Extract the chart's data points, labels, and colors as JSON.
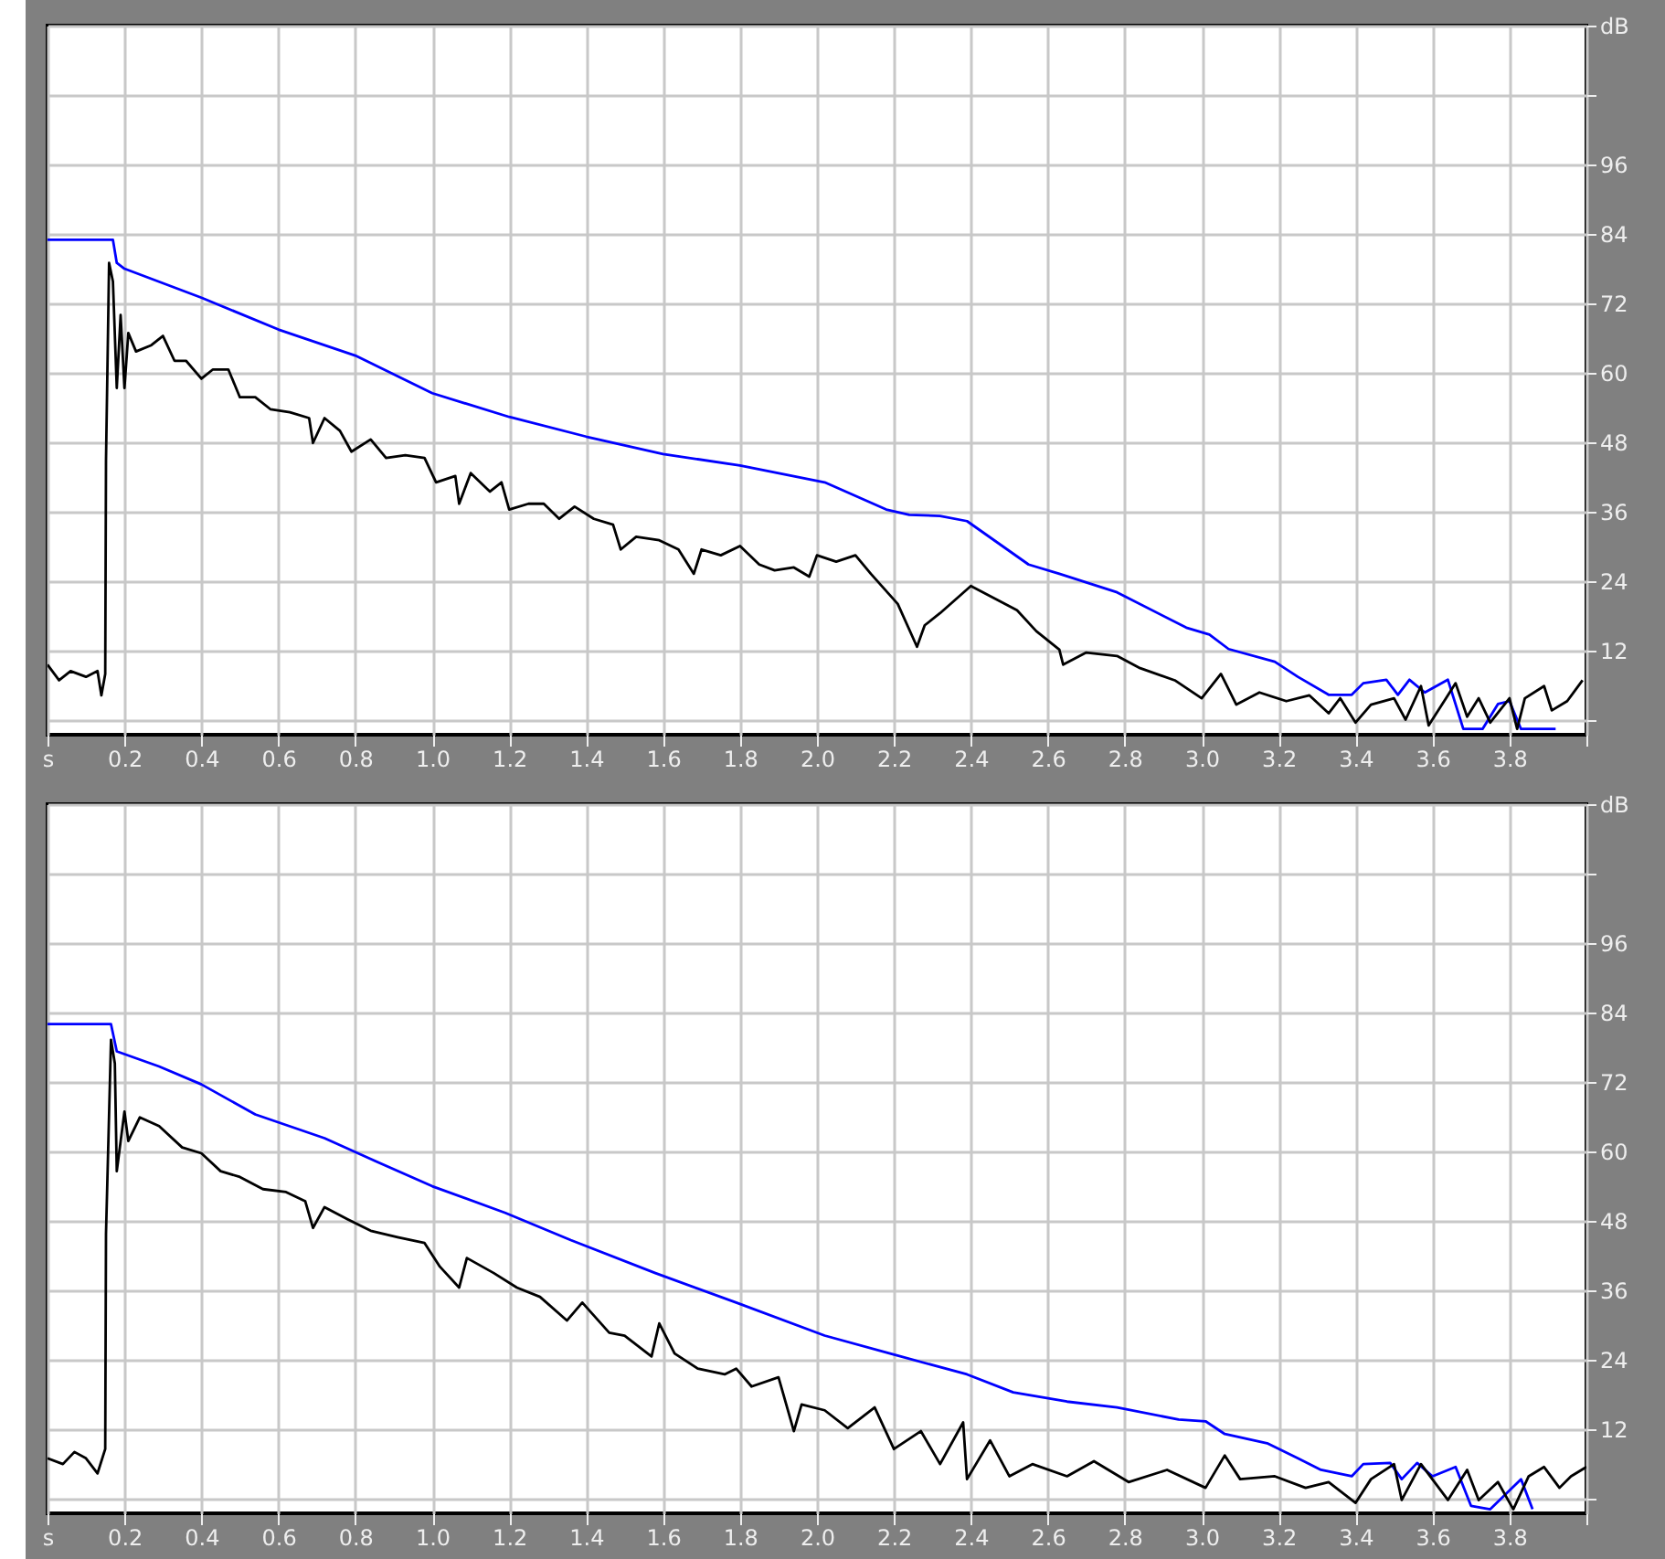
{
  "chart_data": [
    {
      "type": "line",
      "xlim": [
        0,
        4
      ],
      "ylim": [
        -2.5,
        120
      ],
      "grid": true,
      "xticks": [
        {
          "value": 0,
          "label": "s"
        },
        0.2,
        0.4,
        0.6,
        0.8,
        {
          "value": 1,
          "label": "1.0"
        },
        1.2,
        1.4,
        1.6,
        1.8,
        {
          "value": 2,
          "label": "2.0"
        },
        2.2,
        2.4,
        2.6,
        2.8,
        {
          "value": 3,
          "label": "3.0"
        },
        3.2,
        3.4,
        3.6,
        3.8,
        {
          "value": 4,
          "label": null
        }
      ],
      "yticks": [
        {
          "value": 0,
          "label": null
        },
        12,
        24,
        36,
        48,
        60,
        72,
        84,
        96,
        {
          "value": 108,
          "label": null
        },
        {
          "value": 120,
          "label": "dB"
        }
      ],
      "series": [
        {
          "color": "#0000ff",
          "x": [
            0,
            0.17,
            0.18,
            0.2,
            0.4,
            0.6,
            0.8,
            1.0,
            1.2,
            1.4,
            1.6,
            1.8,
            2.02,
            2.18,
            2.24,
            2.32,
            2.39,
            2.55,
            2.63,
            2.78,
            2.96,
            3.02,
            3.07,
            3.19,
            3.25,
            3.33,
            3.39,
            3.42,
            3.48,
            3.51,
            3.54,
            3.58,
            3.64,
            3.68,
            3.73,
            3.77,
            3.8,
            3.83,
            3.92
          ],
          "values": [
            83,
            83,
            79,
            78,
            73,
            67.5,
            63,
            56.5,
            52.4,
            49,
            46,
            44,
            41.1,
            36.4,
            35.5,
            35.3,
            34.4,
            26.9,
            25.3,
            22.1,
            16,
            14.8,
            12.3,
            10.1,
            7.5,
            4.4,
            4.4,
            6.4,
            7,
            4.4,
            7,
            4.8,
            7,
            -1.5,
            -1.5,
            2.8,
            3.3,
            -1.5,
            -1.5
          ]
        },
        {
          "color": "#000000",
          "x": [
            0,
            0.03,
            0.06,
            0.1,
            0.13,
            0.14,
            0.15,
            0.152,
            0.16,
            0.17,
            0.18,
            0.19,
            0.2,
            0.21,
            0.23,
            0.27,
            0.3,
            0.33,
            0.36,
            0.4,
            0.43,
            0.47,
            0.5,
            0.54,
            0.58,
            0.63,
            0.68,
            0.69,
            0.72,
            0.76,
            0.79,
            0.84,
            0.88,
            0.93,
            0.98,
            1.01,
            1.06,
            1.07,
            1.1,
            1.15,
            1.18,
            1.2,
            1.25,
            1.29,
            1.33,
            1.37,
            1.42,
            1.47,
            1.49,
            1.53,
            1.59,
            1.64,
            1.68,
            1.7,
            1.75,
            1.8,
            1.85,
            1.89,
            1.94,
            1.98,
            2.0,
            2.05,
            2.1,
            2.14,
            2.21,
            2.26,
            2.28,
            2.32,
            2.4,
            2.46,
            2.52,
            2.57,
            2.63,
            2.64,
            2.7,
            2.78,
            2.84,
            2.93,
            3.0,
            3.05,
            3.09,
            3.15,
            3.22,
            3.28,
            3.33,
            3.36,
            3.4,
            3.44,
            3.5,
            3.53,
            3.57,
            3.59,
            3.66,
            3.69,
            3.72,
            3.75,
            3.8,
            3.82,
            3.84,
            3.89,
            3.91,
            3.95,
            3.99
          ],
          "values": [
            9.6,
            6.9,
            8.5,
            7.5,
            8.5,
            4.3,
            8,
            44.8,
            79,
            75.8,
            57.4,
            70,
            57.4,
            66.9,
            63.7,
            64.8,
            66.4,
            62.1,
            62.1,
            59,
            60.6,
            60.6,
            55.8,
            55.8,
            53.7,
            53.2,
            52.2,
            47.9,
            52.2,
            50,
            46.4,
            48.5,
            45.3,
            45.8,
            45.3,
            41.1,
            42.2,
            37.4,
            42.7,
            39.5,
            41.1,
            36.4,
            37.4,
            37.4,
            34.8,
            36.9,
            34.8,
            33.8,
            29.5,
            31.7,
            31.1,
            29.5,
            25.3,
            29.5,
            28.5,
            30.1,
            26.9,
            25.9,
            26.4,
            24.8,
            28.5,
            27.4,
            28.5,
            25.3,
            20.1,
            12.7,
            16.4,
            18.5,
            23.2,
            21.1,
            19,
            15.4,
            12.2,
            9.6,
            11.7,
            11.1,
            9,
            6.9,
            3.8,
            8,
            2.7,
            4.8,
            3.3,
            4.3,
            1.2,
            3.8,
            -0.4,
            2.7,
            3.8,
            0.1,
            5.9,
            -0.9,
            6.4,
            0.6,
            3.8,
            -0.4,
            3.8,
            -1.5,
            3.8,
            5.9,
            1.7,
            3.3,
            6.9
          ]
        }
      ]
    },
    {
      "type": "line",
      "xlim": [
        0,
        4
      ],
      "ylim": [
        -2.5,
        120
      ],
      "grid": true,
      "xticks": [
        {
          "value": 0,
          "label": "s"
        },
        0.2,
        0.4,
        0.6,
        0.8,
        {
          "value": 1,
          "label": "1.0"
        },
        1.2,
        1.4,
        1.6,
        1.8,
        {
          "value": 2,
          "label": "2.0"
        },
        2.2,
        2.4,
        2.6,
        2.8,
        {
          "value": 3,
          "label": "3.0"
        },
        3.2,
        3.4,
        3.6,
        3.8,
        {
          "value": 4,
          "label": null
        }
      ],
      "yticks": [
        {
          "value": 0,
          "label": null
        },
        12,
        24,
        36,
        48,
        60,
        72,
        84,
        96,
        {
          "value": 108,
          "label": null
        },
        {
          "value": 120,
          "label": "dB"
        }
      ],
      "series": [
        {
          "color": "#0000ff",
          "x": [
            0,
            0.165,
            0.18,
            0.29,
            0.4,
            0.54,
            0.72,
            0.84,
            1.0,
            1.19,
            1.36,
            1.58,
            1.79,
            2.02,
            2.19,
            2.39,
            2.51,
            2.65,
            2.78,
            2.94,
            3.01,
            3.06,
            3.17,
            3.25,
            3.31,
            3.39,
            3.42,
            3.49,
            3.52,
            3.56,
            3.6,
            3.66,
            3.7,
            3.75,
            3.83,
            3.86
          ],
          "values": [
            82,
            82,
            77.3,
            74.7,
            71.6,
            66.4,
            62.3,
            58.7,
            54,
            49.4,
            44.7,
            39,
            33.9,
            28.2,
            25.1,
            21.5,
            18.4,
            16.8,
            15.8,
            13.7,
            13.4,
            11.2,
            9.6,
            7,
            5,
            3.9,
            6,
            6.2,
            3.4,
            6.2,
            3.9,
            5.5,
            -1.2,
            -1.8,
            3.4,
            -1.8
          ]
        },
        {
          "color": "#000000",
          "x": [
            0,
            0.04,
            0.07,
            0.1,
            0.13,
            0.15,
            0.152,
            0.165,
            0.175,
            0.18,
            0.2,
            0.21,
            0.24,
            0.29,
            0.35,
            0.4,
            0.45,
            0.5,
            0.56,
            0.62,
            0.67,
            0.69,
            0.72,
            0.78,
            0.84,
            0.91,
            0.98,
            1.02,
            1.07,
            1.09,
            1.16,
            1.22,
            1.28,
            1.35,
            1.39,
            1.46,
            1.5,
            1.57,
            1.59,
            1.63,
            1.69,
            1.76,
            1.79,
            1.83,
            1.9,
            1.94,
            1.96,
            2.02,
            2.08,
            2.15,
            2.2,
            2.27,
            2.32,
            2.38,
            2.39,
            2.45,
            2.5,
            2.56,
            2.65,
            2.72,
            2.81,
            2.91,
            3.01,
            3.06,
            3.1,
            3.19,
            3.27,
            3.33,
            3.4,
            3.44,
            3.5,
            3.52,
            3.57,
            3.64,
            3.69,
            3.72,
            3.77,
            3.81,
            3.85,
            3.89,
            3.93,
            3.96,
            4.0
          ],
          "values": [
            7,
            6,
            8.1,
            7,
            4.4,
            8.6,
            45.8,
            79.3,
            75.2,
            56.6,
            66.9,
            61.8,
            65.9,
            64.4,
            60.7,
            59.7,
            56.6,
            55.6,
            53.5,
            53,
            51.4,
            46.8,
            50.4,
            48.3,
            46.3,
            45.2,
            44.2,
            40.1,
            36.5,
            41.6,
            39,
            36.5,
            34.9,
            30.8,
            33.9,
            28.7,
            28.2,
            24.6,
            30.3,
            25.1,
            22.5,
            21.5,
            22.5,
            19.4,
            21,
            11.7,
            16.3,
            15.3,
            12.2,
            15.8,
            8.6,
            11.7,
            6,
            13.2,
            3.4,
            10.1,
            3.9,
            6,
            3.9,
            6.5,
            2.9,
            5,
            1.9,
            7.5,
            3.4,
            3.9,
            1.9,
            2.9,
            -0.7,
            3.4,
            6,
            -0.2,
            6,
            -0.2,
            5,
            -0.2,
            2.9,
            -1.8,
            3.9,
            5.5,
            1.9,
            3.9,
            5.5
          ]
        }
      ]
    }
  ]
}
